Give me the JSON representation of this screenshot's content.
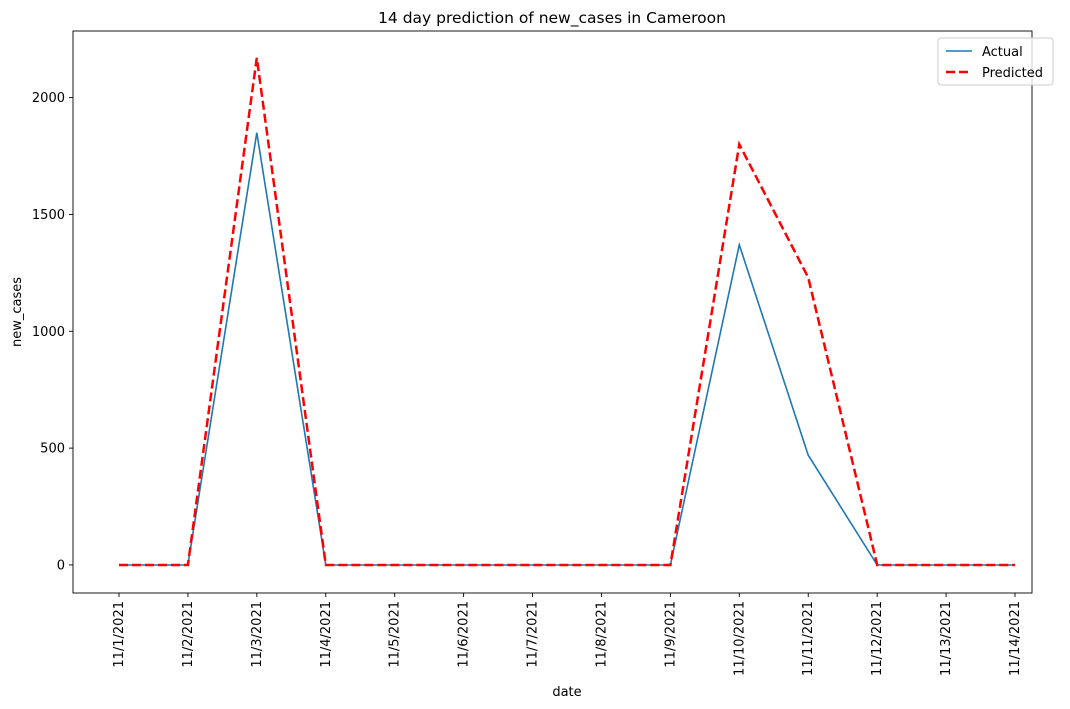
{
  "chart_data": {
    "type": "line",
    "title": "14 day prediction of new_cases in Cameroon",
    "xlabel": "date",
    "ylabel": "new_cases",
    "categories": [
      "11/1/2021",
      "11/2/2021",
      "11/3/2021",
      "11/4/2021",
      "11/5/2021",
      "11/6/2021",
      "11/7/2021",
      "11/8/2021",
      "11/9/2021",
      "11/10/2021",
      "11/11/2021",
      "11/12/2021",
      "11/13/2021",
      "11/14/2021"
    ],
    "yticks": [
      0,
      500,
      1000,
      1500,
      2000
    ],
    "ylim": [
      -120,
      2285
    ],
    "grid": false,
    "legend_position": "top-right",
    "series": [
      {
        "name": "Actual",
        "color": "#1f77b4",
        "style": "solid",
        "values": [
          0,
          0,
          1850,
          0,
          0,
          0,
          0,
          0,
          0,
          1370,
          470,
          0,
          0,
          0
        ]
      },
      {
        "name": "Predicted",
        "color": "#ff0000",
        "style": "dashed",
        "values": [
          0,
          0,
          2170,
          0,
          0,
          0,
          0,
          0,
          0,
          1800,
          1230,
          0,
          0,
          0
        ]
      }
    ]
  }
}
